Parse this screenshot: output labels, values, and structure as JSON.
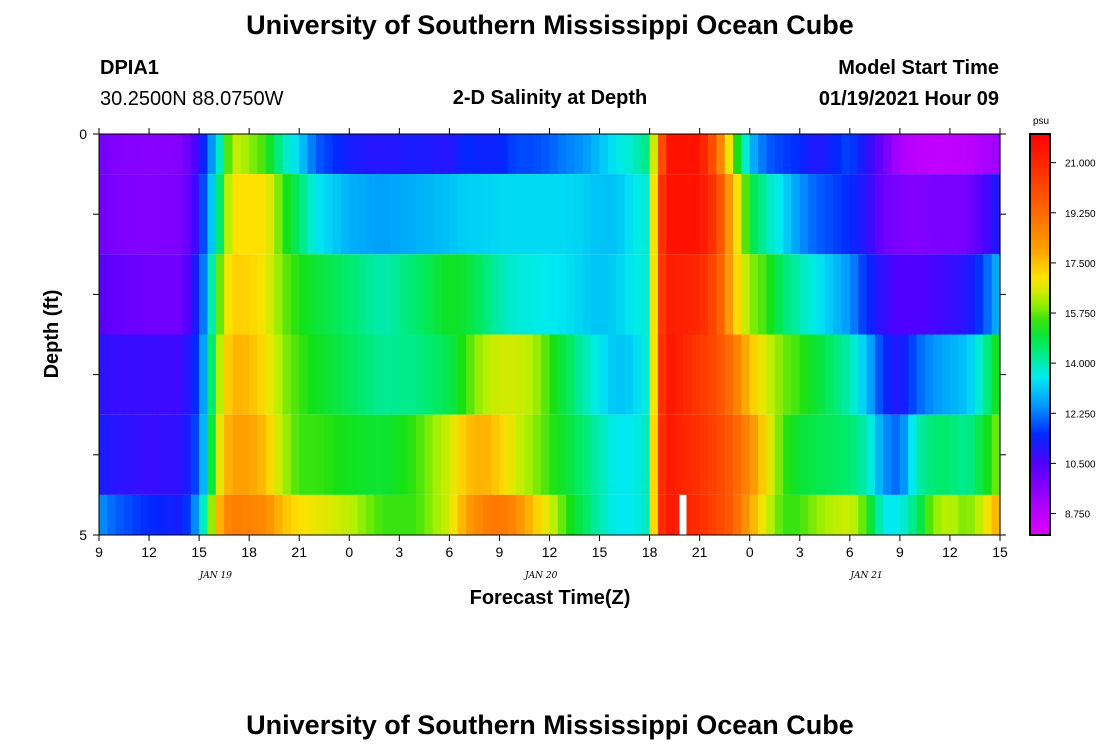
{
  "header": {
    "title": "University of Southern Mississippi Ocean Cube",
    "station_id": "DPIA1",
    "station_coords": "30.2500N 88.0750W",
    "chart_title": "2-D Salinity at Depth",
    "model_start_label": "Model Start Time",
    "model_start_value": "01/19/2021 Hour 09"
  },
  "footer": {
    "title": "University of Southern Mississippi Ocean Cube"
  },
  "chart_data": {
    "type": "heatmap",
    "title": "2-D Salinity at Depth",
    "xlabel": "Forecast Time(Z)",
    "ylabel": "Depth (ft)",
    "xlim": [
      0,
      54
    ],
    "ylim": [
      0,
      5
    ],
    "y_ticks": [
      "0",
      "5"
    ],
    "x_tick_labels": [
      "9",
      "12",
      "15",
      "18",
      "21",
      "0",
      "3",
      "6",
      "9",
      "12",
      "15",
      "18",
      "21",
      "0",
      "3",
      "6",
      "9",
      "12",
      "15"
    ],
    "month_labels": [
      {
        "label": "JAN 19",
        "x": 7
      },
      {
        "label": "JAN 20",
        "x": 26.5
      },
      {
        "label": "JAN 21",
        "x": 46
      }
    ],
    "colorbar": {
      "unit": "psu",
      "min": 8.0,
      "max": 22.0,
      "tick_labels": [
        "21.000",
        "19.250",
        "17.500",
        "15.750",
        "14.000",
        "12.250",
        "10.500",
        "8.750"
      ],
      "tick_values": [
        21.0,
        19.25,
        17.5,
        15.75,
        14.0,
        12.25,
        10.5,
        8.75
      ]
    },
    "depth_rows": [
      0,
      0.5,
      1.5,
      2.5,
      3.5,
      4.5
    ],
    "row_bounds": [
      0,
      0.5,
      1.5,
      2.5,
      3.5,
      4.5,
      5.0
    ],
    "gap_time": 35,
    "gap_depth_range": [
      4.5,
      5.0
    ],
    "key_times": [
      0,
      1,
      3,
      5,
      6,
      6.5,
      7,
      7.5,
      8,
      9,
      10,
      11,
      12,
      13,
      15,
      17,
      19,
      21,
      22,
      23,
      24,
      25,
      26,
      27,
      28,
      29,
      30,
      31,
      32,
      33,
      33.5,
      34,
      34.5,
      36,
      37,
      38,
      39,
      40,
      41,
      42,
      43,
      45,
      46,
      47,
      48,
      49,
      50,
      51,
      52,
      53,
      54
    ],
    "key_values": [
      [
        10.0,
        9.7,
        9.6,
        9.7,
        10.8,
        12.0,
        13.0,
        14.8,
        16.5,
        16.0,
        15.5,
        14.0,
        13.2,
        12.0,
        11.2,
        11.0,
        11.2,
        11.0,
        11.5,
        11.3,
        11.4,
        11.8,
        11.8,
        12.0,
        12.3,
        12.5,
        13.0,
        13.5,
        13.8,
        14.5,
        18.5,
        21.5,
        21.5,
        21.5,
        19.5,
        16.0,
        13.0,
        12.0,
        11.7,
        11.5,
        11.0,
        11.8,
        11.0,
        10.0,
        9.0,
        8.7,
        8.6,
        8.6,
        8.7,
        9.0,
        9.3
      ],
      [
        10.0,
        9.8,
        9.7,
        9.8,
        11.0,
        12.6,
        13.5,
        15.5,
        17.0,
        17.0,
        17.0,
        15.5,
        14.5,
        13.5,
        12.8,
        12.6,
        12.8,
        13.0,
        13.2,
        13.2,
        13.3,
        13.3,
        13.3,
        13.3,
        13.3,
        13.2,
        13.0,
        13.0,
        13.5,
        13.8,
        20.0,
        21.5,
        21.5,
        21.5,
        20.5,
        17.5,
        15.0,
        14.0,
        13.3,
        12.5,
        12.0,
        11.5,
        11.0,
        10.0,
        9.8,
        9.7,
        9.8,
        9.8,
        9.9,
        10.5,
        11.2
      ],
      [
        10.4,
        10.2,
        10.0,
        10.0,
        11.5,
        13.0,
        15.0,
        16.5,
        17.3,
        17.2,
        16.8,
        15.8,
        15.3,
        15.0,
        14.5,
        14.0,
        14.5,
        15.2,
        15.0,
        14.5,
        14.0,
        13.7,
        13.6,
        13.5,
        13.4,
        13.2,
        13.0,
        13.2,
        13.5,
        13.8,
        20.0,
        21.2,
        21.2,
        21.0,
        20.0,
        17.5,
        16.0,
        15.5,
        14.5,
        14.0,
        13.5,
        12.5,
        11.5,
        10.8,
        10.5,
        10.5,
        10.6,
        10.8,
        11.0,
        11.8,
        13.0
      ],
      [
        11.0,
        10.8,
        10.8,
        10.7,
        11.8,
        13.5,
        15.5,
        17.0,
        17.7,
        17.6,
        17.0,
        16.0,
        15.5,
        15.2,
        14.7,
        14.2,
        14.3,
        14.8,
        15.5,
        16.2,
        16.5,
        16.5,
        16.2,
        15.5,
        14.8,
        14.0,
        13.5,
        13.0,
        13.2,
        13.8,
        20.0,
        21.5,
        21.3,
        20.5,
        20.0,
        19.0,
        17.5,
        16.5,
        15.8,
        15.5,
        15.0,
        14.0,
        13.0,
        11.5,
        11.0,
        12.0,
        12.5,
        12.8,
        13.0,
        14.0,
        15.5
      ],
      [
        11.2,
        11.0,
        10.8,
        10.9,
        12.0,
        13.8,
        16.0,
        17.5,
        18.0,
        18.0,
        17.5,
        16.2,
        15.5,
        15.5,
        15.2,
        15.0,
        15.5,
        16.5,
        17.5,
        17.8,
        17.3,
        16.5,
        16.0,
        15.5,
        15.0,
        14.5,
        14.0,
        13.5,
        13.5,
        14.0,
        20.2,
        21.5,
        21.2,
        20.7,
        20.2,
        19.5,
        18.5,
        17.0,
        15.5,
        15.0,
        14.8,
        14.5,
        14.0,
        12.5,
        12.0,
        14.0,
        14.5,
        14.5,
        14.2,
        15.0,
        16.0
      ],
      [
        12.5,
        12.0,
        11.5,
        11.2,
        12.8,
        15.0,
        17.0,
        18.5,
        18.8,
        18.7,
        18.5,
        17.5,
        17.0,
        16.8,
        16.3,
        15.5,
        15.5,
        16.5,
        18.0,
        18.7,
        19.0,
        18.5,
        17.5,
        16.5,
        15.5,
        14.7,
        14.0,
        13.5,
        13.5,
        14.0,
        20.2,
        21.5,
        21.3,
        20.8,
        20.2,
        19.5,
        18.0,
        16.5,
        15.5,
        15.5,
        16.0,
        16.5,
        15.5,
        13.5,
        13.5,
        14.5,
        16.0,
        16.3,
        15.8,
        16.5,
        18.0
      ]
    ]
  }
}
